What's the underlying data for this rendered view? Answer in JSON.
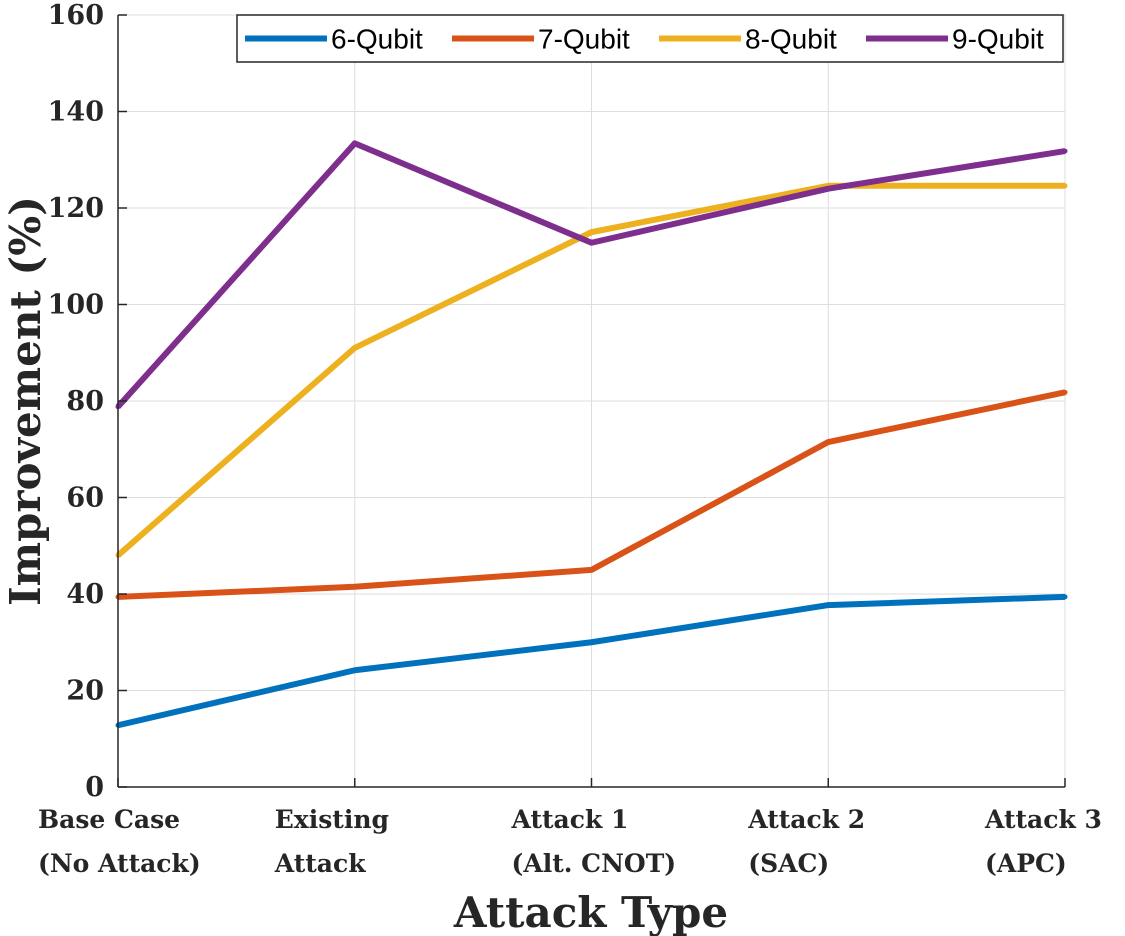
{
  "chart_data": {
    "type": "line",
    "title": "",
    "xlabel": "Attack Type",
    "ylabel": "Improvement (%)",
    "categories": [
      [
        "Base Case",
        "(No Attack)"
      ],
      [
        "Existing",
        "Attack"
      ],
      [
        "Attack 1",
        "(Alt. CNOT)"
      ],
      [
        "Attack 2",
        "(SAC)"
      ],
      [
        "Attack 3",
        "(APC)"
      ]
    ],
    "ylim": [
      0,
      160
    ],
    "yticks": [
      0,
      20,
      40,
      60,
      80,
      100,
      120,
      140,
      160
    ],
    "grid": true,
    "legend_position": "top-right",
    "series": [
      {
        "name": "6-Qubit",
        "color": "#0072BD",
        "values": [
          12.8,
          24.2,
          30.0,
          37.7,
          39.4
        ]
      },
      {
        "name": "7-Qubit",
        "color": "#D95319",
        "values": [
          39.4,
          41.5,
          45.0,
          71.5,
          81.8
        ]
      },
      {
        "name": "8-Qubit",
        "color": "#EDB120",
        "values": [
          48.0,
          91.0,
          115.0,
          124.6,
          124.6
        ]
      },
      {
        "name": "9-Qubit",
        "color": "#7E2F8E",
        "values": [
          78.8,
          133.4,
          112.8,
          124.0,
          131.8
        ]
      }
    ]
  }
}
